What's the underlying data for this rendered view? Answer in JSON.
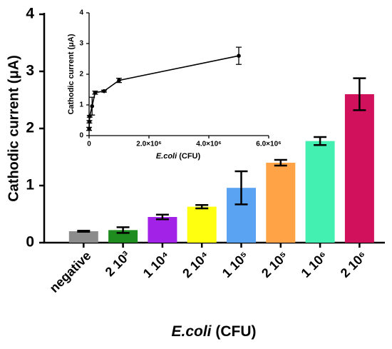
{
  "chart_data": [
    {
      "type": "bar",
      "categories": [
        "negative",
        "2 10³",
        "1 10⁴",
        "2 10⁴",
        "1 10⁵",
        "2 10⁵",
        "1 10⁶",
        "2 10⁶"
      ],
      "values": [
        0.2,
        0.22,
        0.45,
        0.63,
        0.96,
        1.4,
        1.78,
        2.6
      ],
      "errors": [
        0.01,
        0.05,
        0.04,
        0.03,
        0.29,
        0.05,
        0.07,
        0.28
      ],
      "colors": [
        "#8c8c8c",
        "#1e8c1e",
        "#a322e8",
        "#ffff10",
        "#5aa2f2",
        "#ffa346",
        "#44efb2",
        "#d1115c"
      ],
      "ylim": [
        0,
        4
      ],
      "yticks": [
        0,
        1,
        2,
        3,
        4
      ],
      "y_label": "Cathodic current (μA)",
      "x_label_italic": "E.coli",
      "x_label_unit": "(CFU)"
    },
    {
      "type": "line",
      "x": [
        1000,
        10000,
        20000,
        100000,
        200000,
        500000,
        1000000,
        5000000
      ],
      "values": [
        0.22,
        0.45,
        0.63,
        0.96,
        1.4,
        1.45,
        1.8,
        2.6
      ],
      "errors": [
        0.05,
        0.04,
        0.03,
        0.29,
        0.05,
        0.03,
        0.07,
        0.28
      ],
      "color": "#000000",
      "xlim": [
        0,
        6000000
      ],
      "xticks": [
        0,
        {
          "value": 2000000,
          "label": "2.0×10⁶"
        },
        {
          "value": 4000000,
          "label": "4.0×10⁶"
        },
        {
          "value": 6000000,
          "label": "6.0×10⁶"
        }
      ],
      "ylim": [
        0,
        4
      ],
      "yticks": [
        0,
        1,
        2,
        3,
        4
      ],
      "y_label": "Cathodic current (μA)",
      "x_label_italic": "E.coli",
      "x_label_unit": "(CFU)"
    }
  ]
}
